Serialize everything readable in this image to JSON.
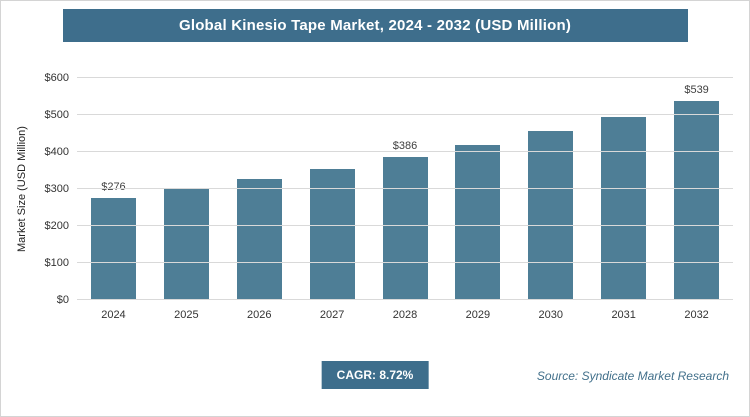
{
  "colors": {
    "banner": "#3e6e8c",
    "bar": "#4e7e96",
    "gridline": "#d9d9d9",
    "source_text": "#42708b"
  },
  "chart_data": {
    "type": "bar",
    "title": "Global Kinesio Tape Market, 2024 - 2032 (USD Million)",
    "categories": [
      "2024",
      "2025",
      "2026",
      "2027",
      "2028",
      "2029",
      "2030",
      "2031",
      "2032"
    ],
    "values": [
      276,
      300,
      326,
      355,
      386,
      419,
      456,
      495,
      539
    ],
    "bar_labels": [
      "$276",
      "",
      "",
      "",
      "$386",
      "",
      "",
      "",
      "$539"
    ],
    "xlabel": "",
    "ylabel": "Market Size (USD Million)",
    "ylim": [
      0,
      600
    ],
    "ytick_step": 100,
    "yticks": [
      "$0",
      "$100",
      "$200",
      "$300",
      "$400",
      "$500",
      "$600"
    ],
    "grid": true,
    "legend": "none"
  },
  "footer": {
    "cagr": "CAGR: 8.72%",
    "source": "Source: Syndicate Market Research"
  }
}
